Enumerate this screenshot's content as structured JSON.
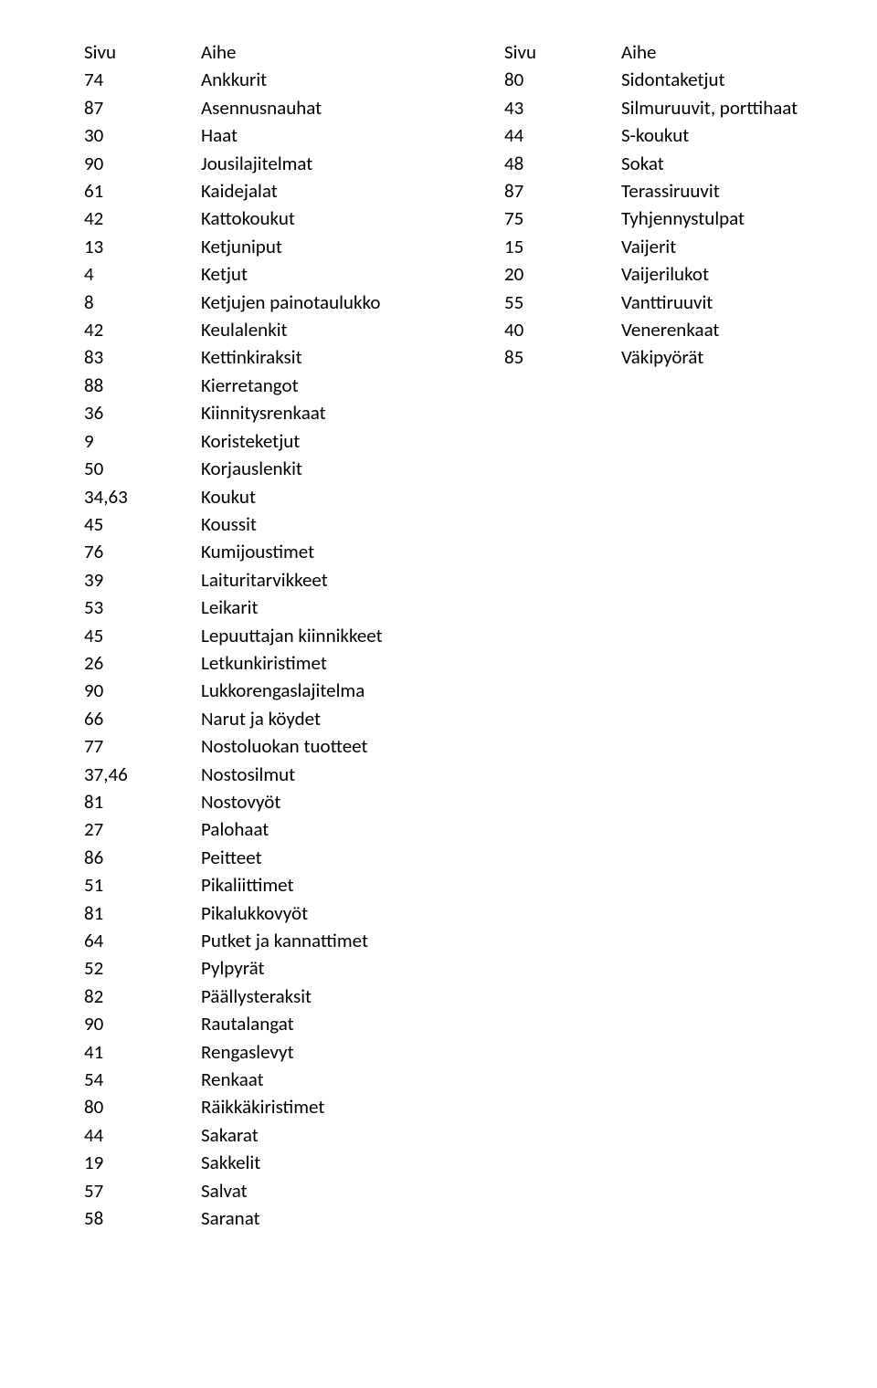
{
  "header": {
    "page": "Sivu",
    "topic": "Aihe"
  },
  "left": [
    {
      "page": "74",
      "topic": "Ankkurit"
    },
    {
      "page": "87",
      "topic": "Asennusnauhat"
    },
    {
      "page": "30",
      "topic": "Haat"
    },
    {
      "page": "90",
      "topic": "Jousilajitelmat"
    },
    {
      "page": "61",
      "topic": "Kaidejalat"
    },
    {
      "page": "42",
      "topic": "Kattokoukut"
    },
    {
      "page": "13",
      "topic": "Ketjuniput"
    },
    {
      "page": "4",
      "topic": "Ketjut"
    },
    {
      "page": "8",
      "topic": "Ketjujen painotaulukko"
    },
    {
      "page": "42",
      "topic": "Keulalenkit"
    },
    {
      "page": "83",
      "topic": "Kettinkiraksit"
    },
    {
      "page": "88",
      "topic": "Kierretangot"
    },
    {
      "page": "36",
      "topic": "Kiinnitysrenkaat"
    },
    {
      "page": "9",
      "topic": "Koristeketjut"
    },
    {
      "page": "50",
      "topic": "Korjauslenkit"
    },
    {
      "page": "34,63",
      "topic": "Koukut"
    },
    {
      "page": "45",
      "topic": "Koussit"
    },
    {
      "page": "76",
      "topic": "Kumijoustimet"
    },
    {
      "page": "39",
      "topic": "Laituritarvikkeet"
    },
    {
      "page": "53",
      "topic": "Leikarit"
    },
    {
      "page": "45",
      "topic": "Lepuuttajan kiinnikkeet"
    },
    {
      "page": "26",
      "topic": "Letkunkiristimet"
    },
    {
      "page": "90",
      "topic": "Lukkorengaslajitelma"
    },
    {
      "page": "66",
      "topic": "Narut ja köydet"
    },
    {
      "page": "77",
      "topic": "Nostoluokan tuotteet"
    },
    {
      "page": "37,46",
      "topic": "Nostosilmut"
    },
    {
      "page": "81",
      "topic": "Nostovyöt"
    },
    {
      "page": "27",
      "topic": "Palohaat"
    },
    {
      "page": "86",
      "topic": "Peitteet"
    },
    {
      "page": "51",
      "topic": "Pikaliittimet"
    },
    {
      "page": "81",
      "topic": "Pikalukkovyöt"
    },
    {
      "page": "64",
      "topic": "Putket ja kannattimet"
    },
    {
      "page": "52",
      "topic": "Pylpyrät"
    },
    {
      "page": "82",
      "topic": "Päällysteraksit"
    },
    {
      "page": "90",
      "topic": "Rautalangat"
    },
    {
      "page": "41",
      "topic": "Rengaslevyt"
    },
    {
      "page": "54",
      "topic": "Renkaat"
    },
    {
      "page": "80",
      "topic": "Räikkäkiristimet"
    },
    {
      "page": "44",
      "topic": "Sakarat"
    },
    {
      "page": "19",
      "topic": "Sakkelit"
    },
    {
      "page": "57",
      "topic": "Salvat"
    },
    {
      "page": "58",
      "topic": "Saranat"
    }
  ],
  "right": [
    {
      "page": "80",
      "topic": "Sidontaketjut"
    },
    {
      "page": "43",
      "topic": "Silmuruuvit, porttihaat"
    },
    {
      "page": "44",
      "topic": "S-koukut"
    },
    {
      "page": "48",
      "topic": "Sokat"
    },
    {
      "page": "87",
      "topic": "Terassiruuvit"
    },
    {
      "page": "75",
      "topic": "Tyhjennystulpat"
    },
    {
      "page": "15",
      "topic": "Vaijerit"
    },
    {
      "page": "20",
      "topic": "Vaijerilukot"
    },
    {
      "page": "55",
      "topic": "Vanttiruuvit"
    },
    {
      "page": "40",
      "topic": "Venerenkaat"
    },
    {
      "page": "85",
      "topic": "Väkipyörät"
    }
  ]
}
